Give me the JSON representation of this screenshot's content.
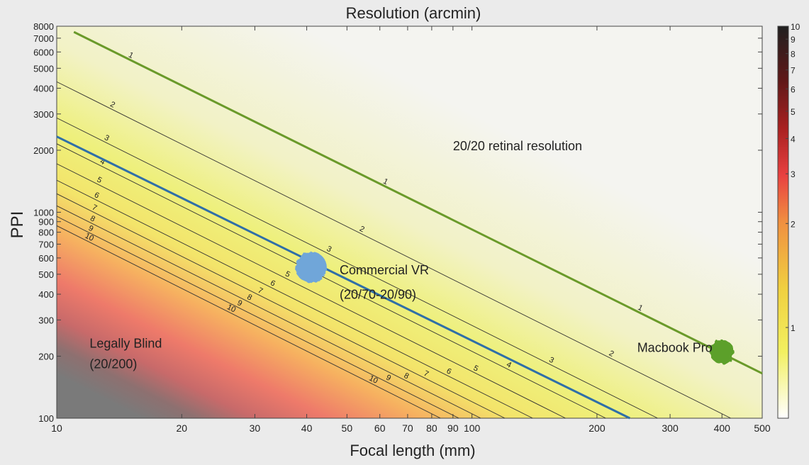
{
  "chart_data": {
    "type": "heatmap",
    "title": "Resolution (arcmin)",
    "xlabel": "Focal length (mm)",
    "ylabel": "PPI",
    "x_scale": "log",
    "y_scale": "log",
    "xlim": [
      10,
      500
    ],
    "ylim": [
      100,
      8000
    ],
    "x_ticks": [
      10,
      20,
      30,
      40,
      50,
      60,
      70,
      80,
      90,
      100,
      200,
      300,
      400,
      500
    ],
    "y_ticks": [
      100,
      200,
      300,
      400,
      500,
      600,
      700,
      800,
      900,
      1000,
      2000,
      3000,
      4000,
      5000,
      6000,
      7000,
      8000
    ],
    "colorbar": {
      "ticks": [
        1,
        2,
        3,
        4,
        5,
        6,
        7,
        8,
        9,
        10
      ],
      "scale": "log",
      "colormap": "white-yellow-red-black"
    },
    "contours": [
      {
        "level": 1,
        "label": "1",
        "points": [
          [
            11,
            7500
          ],
          [
            500,
            165
          ]
        ]
      },
      {
        "level": 2,
        "label": "2",
        "points": [
          [
            10,
            4300
          ],
          [
            420,
            100
          ]
        ]
      },
      {
        "level": 3,
        "label": "3",
        "points": [
          [
            10,
            2870
          ],
          [
            280,
            100
          ]
        ]
      },
      {
        "level": 4,
        "label": "4",
        "points": [
          [
            10,
            2150
          ],
          [
            210,
            100
          ]
        ]
      },
      {
        "level": 5,
        "label": "5",
        "points": [
          [
            10,
            1720
          ],
          [
            168,
            100
          ]
        ]
      },
      {
        "level": 6,
        "label": "6",
        "points": [
          [
            10,
            1430
          ],
          [
            140,
            100
          ]
        ]
      },
      {
        "level": 7,
        "label": "7",
        "points": [
          [
            10,
            1230
          ],
          [
            120,
            100
          ]
        ]
      },
      {
        "level": 8,
        "label": "8",
        "points": [
          [
            10,
            1075
          ],
          [
            105,
            100
          ]
        ]
      },
      {
        "level": 9,
        "label": "9",
        "points": [
          [
            10,
            955
          ],
          [
            93,
            100
          ]
        ]
      },
      {
        "level": 10,
        "label": "10",
        "points": [
          [
            10,
            860
          ],
          [
            84,
            100
          ]
        ]
      }
    ],
    "reference_lines": [
      {
        "name": "20/20 retinal resolution",
        "color": "#6a9a2a",
        "points": [
          [
            11,
            7500
          ],
          [
            500,
            165
          ]
        ]
      },
      {
        "name": "Commercial VR",
        "color": "#2f6fa8",
        "points": [
          [
            10,
            2330
          ],
          [
            240,
            100
          ]
        ]
      }
    ],
    "points": [
      {
        "name": "Commercial VR",
        "x": 41,
        "y": 540,
        "color": "#6fa6d9"
      },
      {
        "name": "Macbook Pro",
        "x": 400,
        "y": 210,
        "color": "#5ca02a"
      }
    ],
    "annotations": [
      {
        "text": "20/20 retinal resolution",
        "x": 90,
        "y": 2000
      },
      {
        "text": "Commercial VR",
        "x": 48,
        "y": 500
      },
      {
        "text": "(20/70-20/90)",
        "x": 48,
        "y": 380
      },
      {
        "text": "Macbook Pro",
        "x": 250,
        "y": 210
      },
      {
        "text": "Legally Blind",
        "x": 12,
        "y": 220
      },
      {
        "text": "(20/200)",
        "x": 12,
        "y": 175
      }
    ],
    "colors": {
      "grey_region": "#7a7a7a",
      "background": "#ebebeb"
    }
  }
}
